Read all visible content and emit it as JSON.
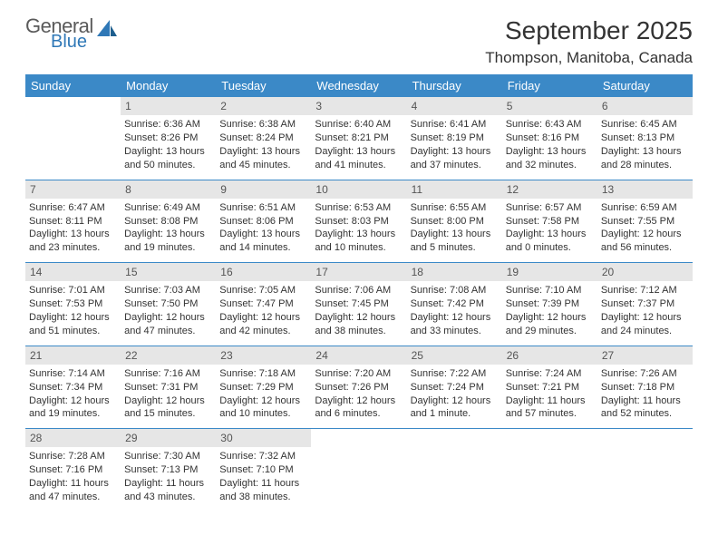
{
  "logo": {
    "line1": "General",
    "line2": "Blue"
  },
  "title": "September 2025",
  "location": "Thompson, Manitoba, Canada",
  "colors": {
    "header_bg": "#3b89c7",
    "header_fg": "#ffffff",
    "daynum_bg": "#e6e6e6",
    "row_border": "#3b89c7",
    "logo_gray": "#5a5a5a",
    "logo_blue": "#2f78b7"
  },
  "weekdays": [
    "Sunday",
    "Monday",
    "Tuesday",
    "Wednesday",
    "Thursday",
    "Friday",
    "Saturday"
  ],
  "weeks": [
    [
      {
        "n": "",
        "sr": "",
        "ss": "",
        "dl": ""
      },
      {
        "n": "1",
        "sr": "Sunrise: 6:36 AM",
        "ss": "Sunset: 8:26 PM",
        "dl": "Daylight: 13 hours and 50 minutes."
      },
      {
        "n": "2",
        "sr": "Sunrise: 6:38 AM",
        "ss": "Sunset: 8:24 PM",
        "dl": "Daylight: 13 hours and 45 minutes."
      },
      {
        "n": "3",
        "sr": "Sunrise: 6:40 AM",
        "ss": "Sunset: 8:21 PM",
        "dl": "Daylight: 13 hours and 41 minutes."
      },
      {
        "n": "4",
        "sr": "Sunrise: 6:41 AM",
        "ss": "Sunset: 8:19 PM",
        "dl": "Daylight: 13 hours and 37 minutes."
      },
      {
        "n": "5",
        "sr": "Sunrise: 6:43 AM",
        "ss": "Sunset: 8:16 PM",
        "dl": "Daylight: 13 hours and 32 minutes."
      },
      {
        "n": "6",
        "sr": "Sunrise: 6:45 AM",
        "ss": "Sunset: 8:13 PM",
        "dl": "Daylight: 13 hours and 28 minutes."
      }
    ],
    [
      {
        "n": "7",
        "sr": "Sunrise: 6:47 AM",
        "ss": "Sunset: 8:11 PM",
        "dl": "Daylight: 13 hours and 23 minutes."
      },
      {
        "n": "8",
        "sr": "Sunrise: 6:49 AM",
        "ss": "Sunset: 8:08 PM",
        "dl": "Daylight: 13 hours and 19 minutes."
      },
      {
        "n": "9",
        "sr": "Sunrise: 6:51 AM",
        "ss": "Sunset: 8:06 PM",
        "dl": "Daylight: 13 hours and 14 minutes."
      },
      {
        "n": "10",
        "sr": "Sunrise: 6:53 AM",
        "ss": "Sunset: 8:03 PM",
        "dl": "Daylight: 13 hours and 10 minutes."
      },
      {
        "n": "11",
        "sr": "Sunrise: 6:55 AM",
        "ss": "Sunset: 8:00 PM",
        "dl": "Daylight: 13 hours and 5 minutes."
      },
      {
        "n": "12",
        "sr": "Sunrise: 6:57 AM",
        "ss": "Sunset: 7:58 PM",
        "dl": "Daylight: 13 hours and 0 minutes."
      },
      {
        "n": "13",
        "sr": "Sunrise: 6:59 AM",
        "ss": "Sunset: 7:55 PM",
        "dl": "Daylight: 12 hours and 56 minutes."
      }
    ],
    [
      {
        "n": "14",
        "sr": "Sunrise: 7:01 AM",
        "ss": "Sunset: 7:53 PM",
        "dl": "Daylight: 12 hours and 51 minutes."
      },
      {
        "n": "15",
        "sr": "Sunrise: 7:03 AM",
        "ss": "Sunset: 7:50 PM",
        "dl": "Daylight: 12 hours and 47 minutes."
      },
      {
        "n": "16",
        "sr": "Sunrise: 7:05 AM",
        "ss": "Sunset: 7:47 PM",
        "dl": "Daylight: 12 hours and 42 minutes."
      },
      {
        "n": "17",
        "sr": "Sunrise: 7:06 AM",
        "ss": "Sunset: 7:45 PM",
        "dl": "Daylight: 12 hours and 38 minutes."
      },
      {
        "n": "18",
        "sr": "Sunrise: 7:08 AM",
        "ss": "Sunset: 7:42 PM",
        "dl": "Daylight: 12 hours and 33 minutes."
      },
      {
        "n": "19",
        "sr": "Sunrise: 7:10 AM",
        "ss": "Sunset: 7:39 PM",
        "dl": "Daylight: 12 hours and 29 minutes."
      },
      {
        "n": "20",
        "sr": "Sunrise: 7:12 AM",
        "ss": "Sunset: 7:37 PM",
        "dl": "Daylight: 12 hours and 24 minutes."
      }
    ],
    [
      {
        "n": "21",
        "sr": "Sunrise: 7:14 AM",
        "ss": "Sunset: 7:34 PM",
        "dl": "Daylight: 12 hours and 19 minutes."
      },
      {
        "n": "22",
        "sr": "Sunrise: 7:16 AM",
        "ss": "Sunset: 7:31 PM",
        "dl": "Daylight: 12 hours and 15 minutes."
      },
      {
        "n": "23",
        "sr": "Sunrise: 7:18 AM",
        "ss": "Sunset: 7:29 PM",
        "dl": "Daylight: 12 hours and 10 minutes."
      },
      {
        "n": "24",
        "sr": "Sunrise: 7:20 AM",
        "ss": "Sunset: 7:26 PM",
        "dl": "Daylight: 12 hours and 6 minutes."
      },
      {
        "n": "25",
        "sr": "Sunrise: 7:22 AM",
        "ss": "Sunset: 7:24 PM",
        "dl": "Daylight: 12 hours and 1 minute."
      },
      {
        "n": "26",
        "sr": "Sunrise: 7:24 AM",
        "ss": "Sunset: 7:21 PM",
        "dl": "Daylight: 11 hours and 57 minutes."
      },
      {
        "n": "27",
        "sr": "Sunrise: 7:26 AM",
        "ss": "Sunset: 7:18 PM",
        "dl": "Daylight: 11 hours and 52 minutes."
      }
    ],
    [
      {
        "n": "28",
        "sr": "Sunrise: 7:28 AM",
        "ss": "Sunset: 7:16 PM",
        "dl": "Daylight: 11 hours and 47 minutes."
      },
      {
        "n": "29",
        "sr": "Sunrise: 7:30 AM",
        "ss": "Sunset: 7:13 PM",
        "dl": "Daylight: 11 hours and 43 minutes."
      },
      {
        "n": "30",
        "sr": "Sunrise: 7:32 AM",
        "ss": "Sunset: 7:10 PM",
        "dl": "Daylight: 11 hours and 38 minutes."
      },
      {
        "n": "",
        "sr": "",
        "ss": "",
        "dl": ""
      },
      {
        "n": "",
        "sr": "",
        "ss": "",
        "dl": ""
      },
      {
        "n": "",
        "sr": "",
        "ss": "",
        "dl": ""
      },
      {
        "n": "",
        "sr": "",
        "ss": "",
        "dl": ""
      }
    ]
  ]
}
